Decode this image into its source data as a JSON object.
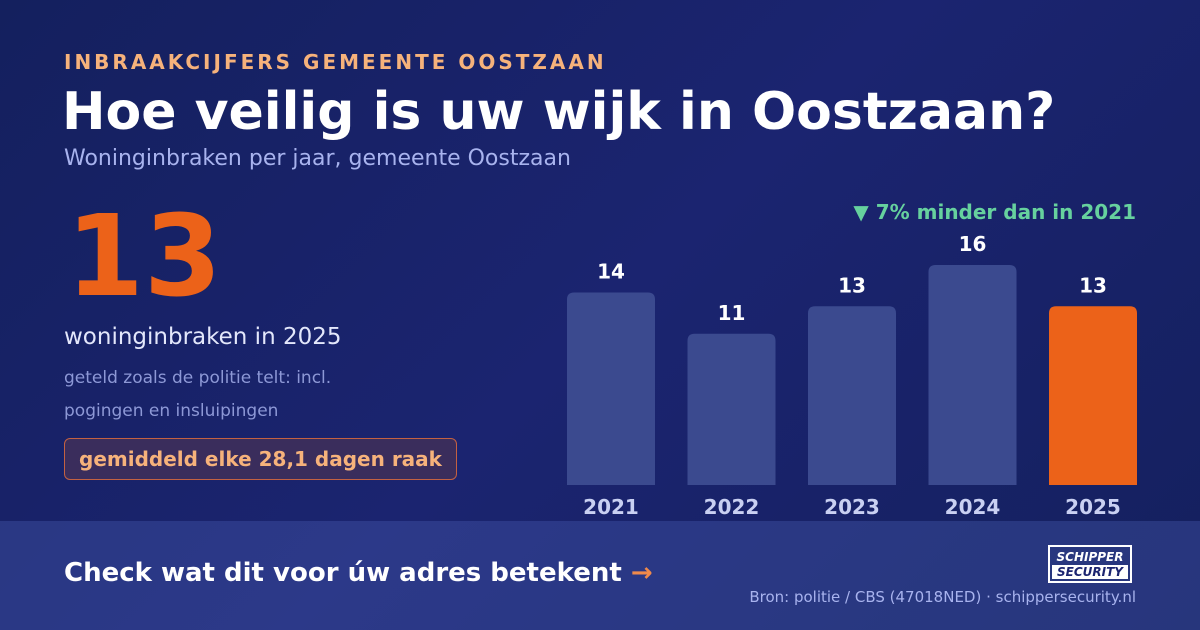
{
  "header": {
    "eyebrow": "INBRAAKCIJFERS GEMEENTE OOSTZAAN",
    "headline": "Hoe veilig is uw wijk in Oostzaan?",
    "subtitle": "Woninginbraken per jaar, gemeente Oostzaan"
  },
  "highlight": {
    "number": "13",
    "caption": "woninginbraken in 2025",
    "note": "geteld zoals de politie telt: incl. pogingen en insluipingen",
    "pill": "gemiddeld elke 28,1 dagen raak"
  },
  "change_label": "▼ 7% minder dan in 2021",
  "colors": {
    "background": "#1b2470",
    "bar": "#3b4a8f",
    "highlight_bar": "#ec6219",
    "accent": "#f6b27b",
    "positive": "#66d19e"
  },
  "chart_data": {
    "type": "bar",
    "categories": [
      "2021",
      "2022",
      "2023",
      "2024",
      "2025"
    ],
    "values": [
      14,
      11,
      13,
      16,
      13
    ],
    "highlight_index": 4,
    "ylim": [
      0,
      16
    ],
    "grid": false,
    "title": "",
    "xlabel": "",
    "ylabel": ""
  },
  "footer": {
    "cta": "Check wat dit voor úw adres betekent",
    "cta_arrow": "→",
    "source": "Bron: politie / CBS (47018NED) · schippersecurity.nl",
    "logo_line1": "SCHIPPER",
    "logo_line2": "SECURITY"
  }
}
